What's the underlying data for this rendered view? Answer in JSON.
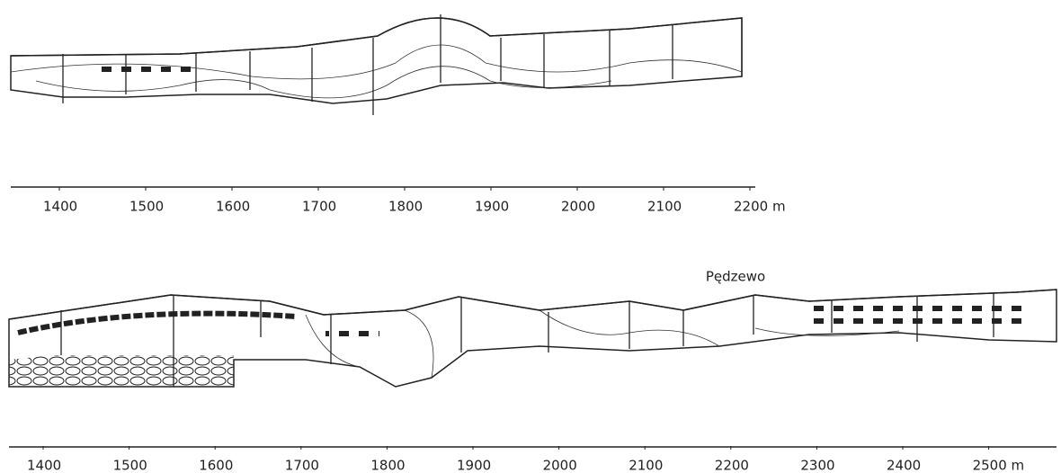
{
  "top_section": {
    "axis_labels": [
      "1400",
      "1500",
      "1600",
      "1700",
      "1800",
      "1900",
      "2000",
      "2100",
      "2200 m"
    ]
  },
  "bottom_section": {
    "place_label": "Pędzewo",
    "axis_labels": [
      "1400",
      "1500",
      "1600",
      "1700",
      "1800",
      "1900",
      "2000",
      "2100",
      "2200",
      "2300",
      "2400",
      "2500 m"
    ]
  }
}
